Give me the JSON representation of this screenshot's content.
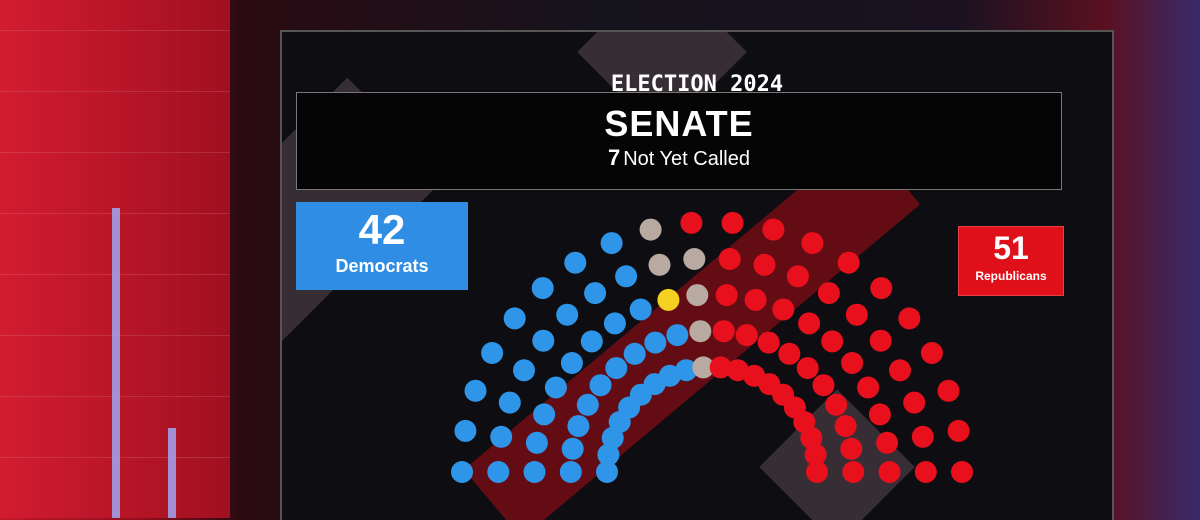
{
  "header": {
    "kicker": "ELECTION 2024",
    "title": "SENATE",
    "not_called_count": "7",
    "not_called_label": "Not Yet Called"
  },
  "democrats": {
    "count": "42",
    "label": "Democrats",
    "color": "#2f95e8"
  },
  "republicans": {
    "count": "51",
    "label": "Republicans",
    "color": "#e8101c"
  },
  "chart_data": {
    "type": "parliament",
    "total_seats": 100,
    "seats": [
      {
        "party": "Democrats",
        "value": 42,
        "color": "#2f95e8"
      },
      {
        "party": "Not Yet Called (yellow)",
        "value": 1,
        "color": "#f5d020"
      },
      {
        "party": "Not Yet Called",
        "value": 6,
        "color": "#b8aaa0"
      },
      {
        "party": "Republicans",
        "value": 51,
        "color": "#e8101c"
      }
    ]
  }
}
